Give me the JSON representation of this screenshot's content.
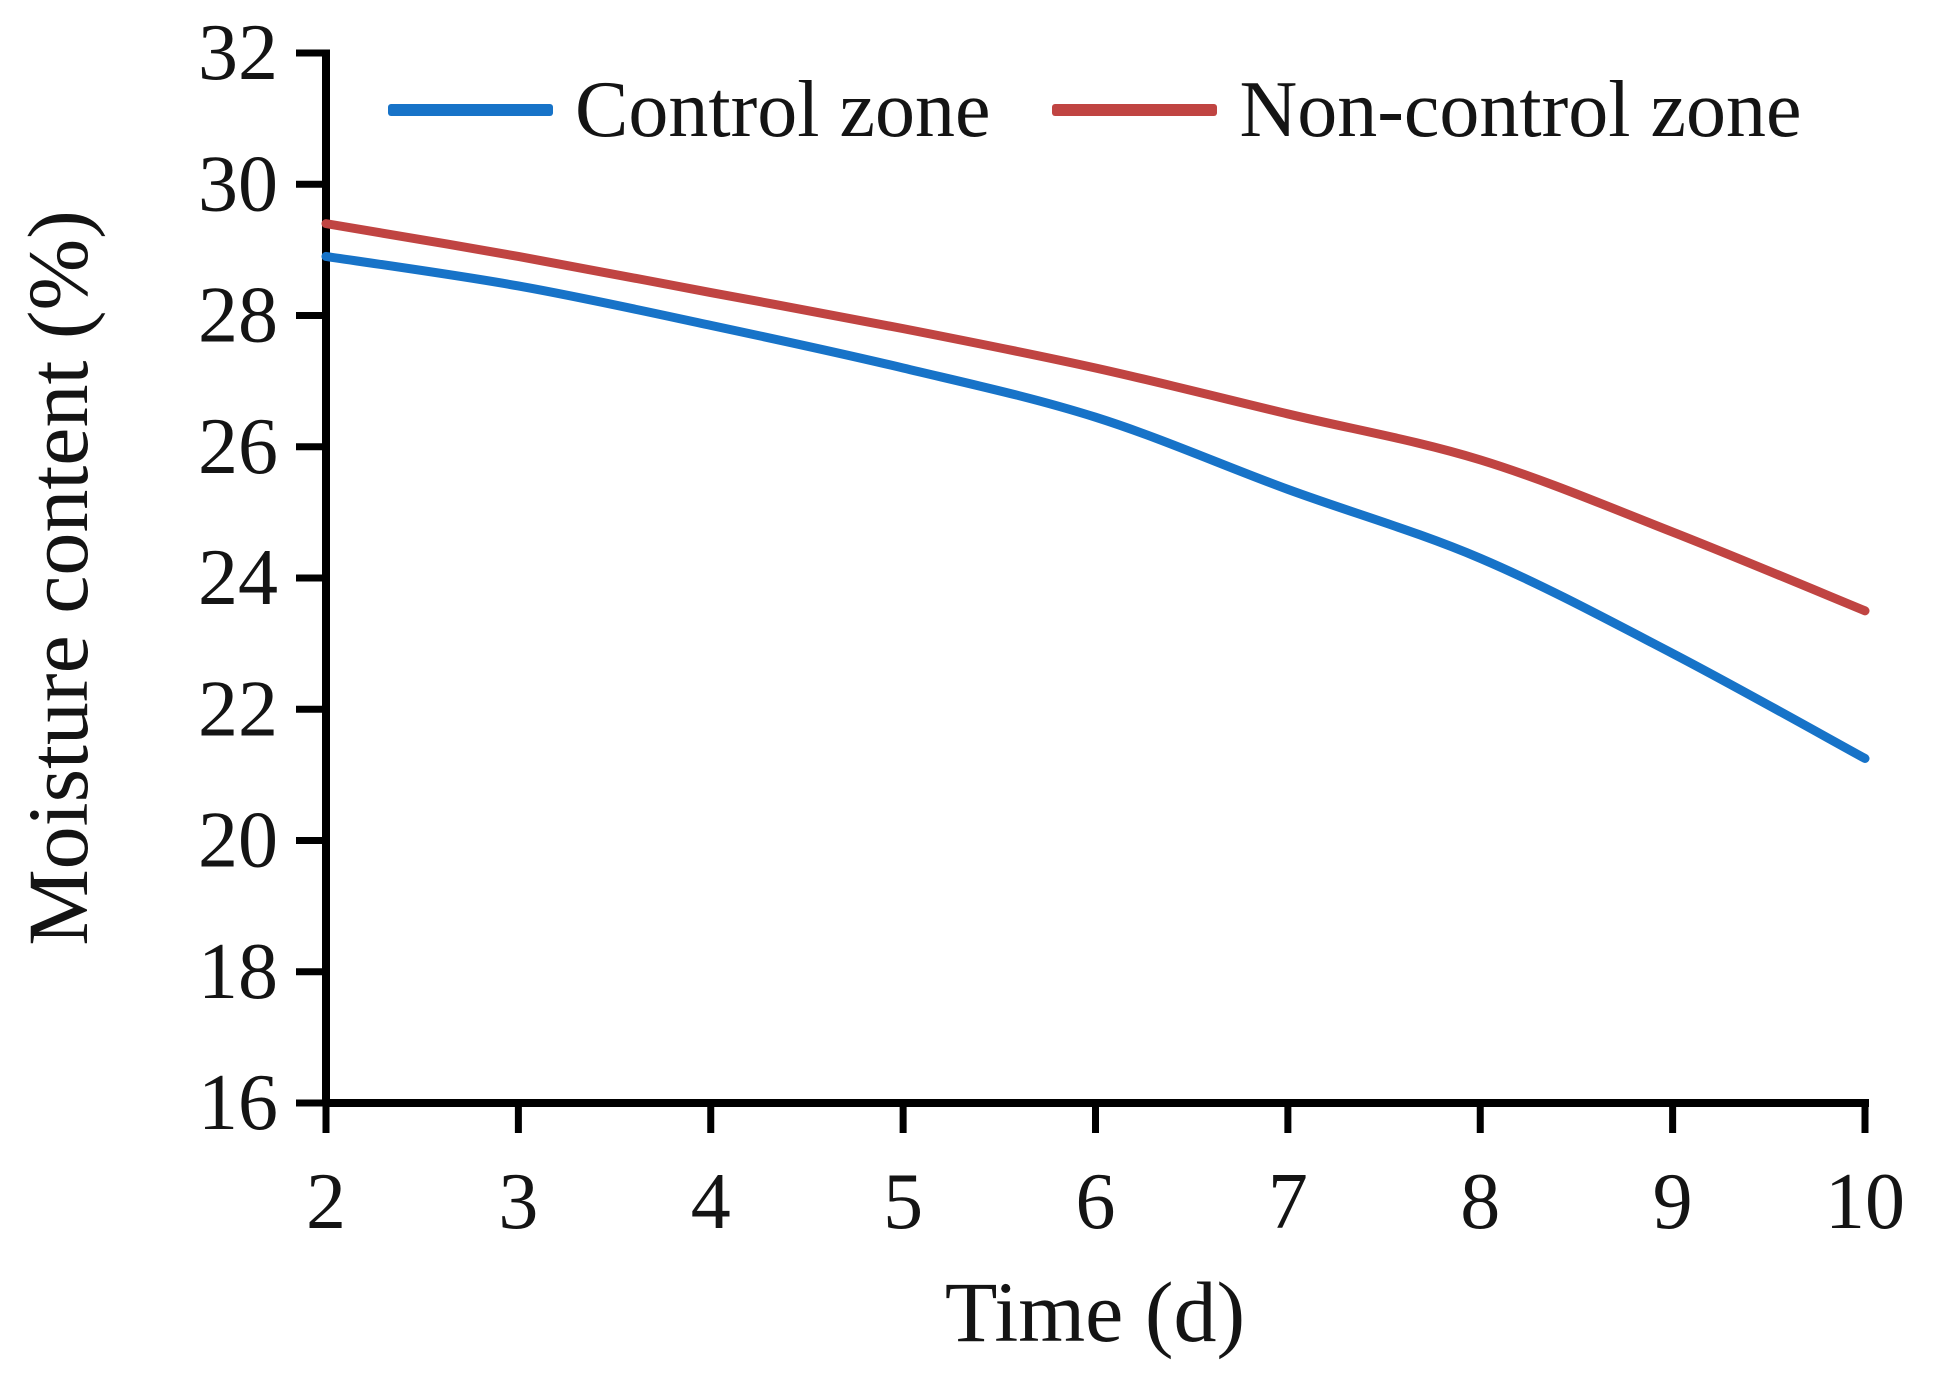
{
  "chart_data": {
    "type": "line",
    "title": "",
    "xlabel": "Time (d)",
    "ylabel": "Moisture content (%)",
    "x": [
      2,
      3,
      4,
      5,
      6,
      7,
      8,
      9,
      10
    ],
    "series": [
      {
        "name": "Control zone",
        "color": "#1773c8",
        "values": [
          28.9,
          28.45,
          27.85,
          27.2,
          26.45,
          25.35,
          24.3,
          22.85,
          21.25
        ]
      },
      {
        "name": "Non-control zone",
        "color": "#c04442",
        "values": [
          29.4,
          28.9,
          28.35,
          27.8,
          27.2,
          26.5,
          25.8,
          24.7,
          23.5
        ]
      }
    ],
    "xlim": [
      2,
      10
    ],
    "ylim": [
      16,
      32
    ],
    "x_ticks": [
      2,
      3,
      4,
      5,
      6,
      7,
      8,
      9,
      10
    ],
    "y_ticks": [
      16,
      18,
      20,
      22,
      24,
      26,
      28,
      30,
      32
    ],
    "grid": false,
    "legend_position": "top",
    "axis_color": "#000000",
    "tick_label_color": "#141414"
  }
}
